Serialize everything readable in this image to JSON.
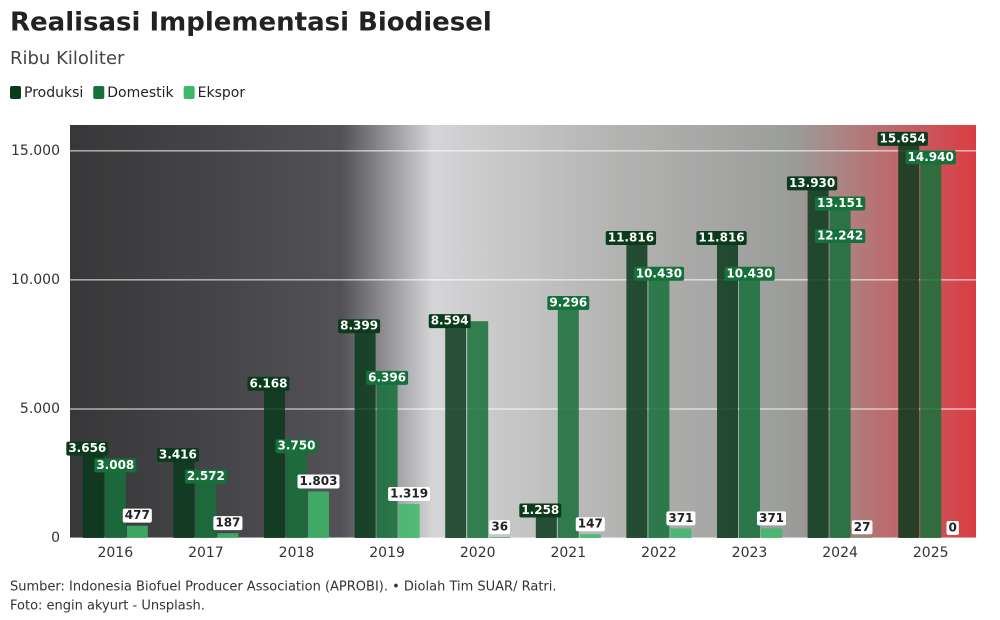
{
  "chart_data": {
    "type": "bar",
    "title": "Realisasi Implementasi Biodiesel",
    "subtitle": "Ribu Kiloliter",
    "categories": [
      "2016",
      "2017",
      "2018",
      "2019",
      "2020",
      "2021",
      "2022",
      "2023",
      "2024",
      "2025"
    ],
    "series": [
      {
        "name": "Produksi",
        "color": "#0b3a1d",
        "values": [
          3656,
          3416,
          6168,
          8399,
          8594,
          1258,
          11816,
          11816,
          13930,
          15654
        ],
        "value_labels": [
          "3.656",
          "3.416",
          "6.168",
          "8.399",
          "8.594",
          "1.258",
          "11.816",
          "11.816",
          "13.930",
          "15.654"
        ]
      },
      {
        "name": "Domestik",
        "color": "#16703a",
        "values": [
          3008,
          2572,
          3750,
          6396,
          8400,
          9296,
          10430,
          10430,
          13151,
          14940
        ],
        "value_labels": [
          "3.008",
          "2.572",
          "3.750",
          "6.396",
          null,
          "9.296",
          "10.430",
          "10.430",
          "13.151",
          "14.940"
        ]
      },
      {
        "name": "Ekspor",
        "color": "#3cb96a",
        "values": [
          477,
          187,
          1803,
          1319,
          36,
          147,
          371,
          371,
          27,
          0
        ],
        "value_labels": [
          "477",
          "187",
          "1.803",
          "1.319",
          "36",
          "147",
          "371",
          "371",
          "27",
          "0"
        ]
      }
    ],
    "annotations": [
      {
        "text": "12.242",
        "value": 12242
      }
    ],
    "ylim": [
      0,
      16000
    ],
    "yticks": [
      0,
      {
        "value": 5000,
        "label": "5.000"
      },
      {
        "value": 10000,
        "label": "10.000"
      },
      {
        "value": 15000,
        "label": "15.000"
      }
    ],
    "grid": true,
    "source": "Sumber: Indonesia Biofuel Producer Association (APROBI). • Diolah Tim SUAR/ Ratri.",
    "photo_credit": "Foto: engin akyurt - Unsplash."
  }
}
